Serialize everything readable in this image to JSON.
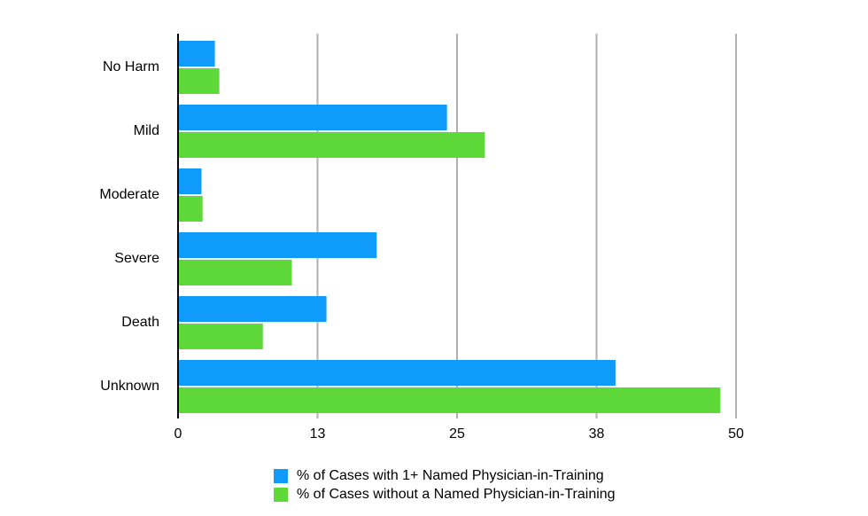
{
  "chart_data": {
    "type": "bar",
    "orientation": "horizontal",
    "categories": [
      "No Harm",
      "Mild",
      "Moderate",
      "Severe",
      "Death",
      "Unknown"
    ],
    "series": [
      {
        "name": "% of Cases with 1+ Named Physician-in-Training",
        "color": "#0f9bfb",
        "values": [
          3.3,
          24.1,
          2.1,
          17.8,
          13.3,
          39.2
        ]
      },
      {
        "name": "% of Cases without a Named Physician-in-Training",
        "color": "#5fd83a",
        "values": [
          3.7,
          27.5,
          2.2,
          10.2,
          7.6,
          48.6
        ]
      }
    ],
    "xlim": [
      0,
      50
    ],
    "xticks": [
      0,
      {
        "value": 12.5,
        "label": "13"
      },
      25,
      {
        "value": 37.5,
        "label": "38"
      },
      50
    ],
    "grid": true,
    "legend": "bottom"
  }
}
